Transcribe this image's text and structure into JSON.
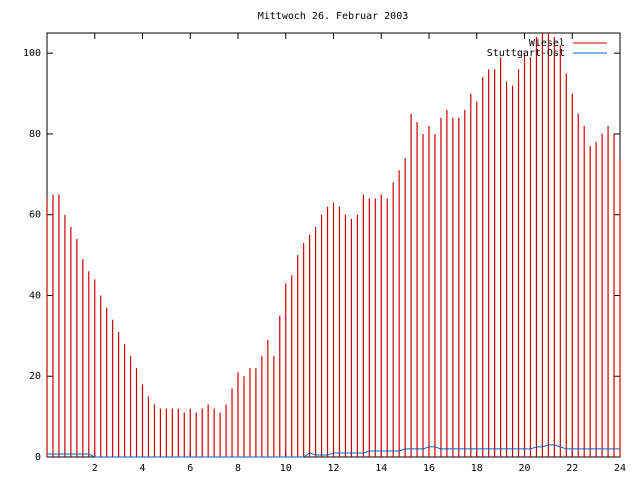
{
  "chart_data": {
    "type": "impulses",
    "title": "Mittwoch 26. Februar 2003",
    "x": [
      0,
      0.25,
      0.5,
      0.75,
      1,
      1.25,
      1.5,
      1.75,
      2,
      2.25,
      2.5,
      2.75,
      3,
      3.25,
      3.5,
      3.75,
      4,
      4.25,
      4.5,
      4.75,
      5,
      5.25,
      5.5,
      5.75,
      6,
      6.25,
      6.5,
      6.75,
      7,
      7.25,
      7.5,
      7.75,
      8,
      8.25,
      8.5,
      8.75,
      9,
      9.25,
      9.5,
      9.75,
      10,
      10.25,
      10.5,
      10.75,
      11,
      11.25,
      11.5,
      11.75,
      12,
      12.25,
      12.5,
      12.75,
      13,
      13.25,
      13.5,
      13.75,
      14,
      14.25,
      14.5,
      14.75,
      15,
      15.25,
      15.5,
      15.75,
      16,
      16.25,
      16.5,
      16.75,
      17,
      17.25,
      17.5,
      17.75,
      18,
      18.25,
      18.5,
      18.75,
      19,
      19.25,
      19.5,
      19.75,
      20,
      20.25,
      20.5,
      20.75,
      21,
      21.25,
      21.5,
      21.75,
      22,
      22.25,
      22.5,
      22.75,
      23,
      23.25,
      23.5,
      23.75,
      24
    ],
    "series": [
      {
        "name": "Wiesel",
        "color": "#cc0000",
        "values": [
          64,
          65,
          65,
          60,
          57,
          54,
          49,
          46,
          44,
          40,
          37,
          34,
          31,
          28,
          25,
          22,
          18,
          15,
          13,
          12,
          12,
          12,
          12,
          11,
          12,
          11,
          12,
          13,
          12,
          11,
          13,
          17,
          21,
          20,
          22,
          22,
          25,
          29,
          25,
          35,
          43,
          45,
          50,
          53,
          55,
          57,
          60,
          62,
          63,
          62,
          60,
          59,
          60,
          65,
          64,
          64,
          65,
          64,
          68,
          71,
          74,
          85,
          83,
          80,
          82,
          80,
          84,
          86,
          84,
          84,
          86,
          90,
          88,
          94,
          96,
          96,
          99,
          93,
          92,
          96,
          100,
          99,
          104,
          105,
          105,
          104,
          102,
          95,
          90,
          85,
          82,
          77,
          78,
          80,
          82,
          80,
          74
        ]
      },
      {
        "name": "Stuttgart-Ost",
        "color": "#0066cc",
        "values": [
          0.75,
          0.75,
          0.75,
          0.75,
          0.75,
          0.75,
          0.75,
          0.75,
          0,
          0,
          0,
          0,
          0,
          0,
          0,
          0,
          0,
          0,
          0,
          0,
          0,
          0,
          0,
          0,
          0,
          0,
          0,
          0,
          0,
          0,
          0,
          0,
          0,
          0,
          0,
          0,
          0,
          0,
          0,
          0,
          0,
          0,
          0,
          0,
          1,
          0.5,
          0.5,
          0.5,
          1,
          1,
          1,
          1,
          1,
          1,
          1.5,
          1.5,
          1.5,
          1.5,
          1.5,
          1.5,
          2,
          2,
          2,
          2,
          2.5,
          2.5,
          2,
          2,
          2,
          2,
          2,
          2,
          2,
          2,
          2,
          2,
          2,
          2,
          2,
          2,
          2,
          2,
          2.5,
          2.5,
          3,
          3,
          2.5,
          2,
          2,
          2,
          2,
          2,
          2,
          2,
          2,
          2,
          2
        ]
      }
    ],
    "xlim": [
      0,
      24
    ],
    "xticks": [
      2,
      4,
      6,
      8,
      10,
      12,
      14,
      16,
      18,
      20,
      22,
      24
    ],
    "ylim": [
      0,
      105
    ],
    "yticks": [
      0,
      20,
      40,
      60,
      80,
      100
    ],
    "legend": "top-right"
  }
}
